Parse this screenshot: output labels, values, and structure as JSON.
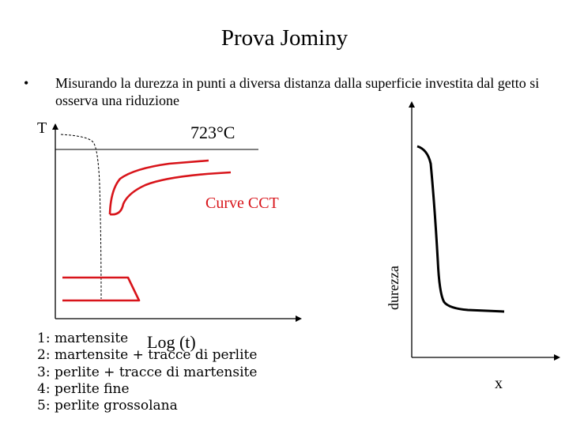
{
  "title": "Prova Jominy",
  "bullet": {
    "marker": "•",
    "text": "Misurando la durezza in punti a diversa distanza dalla superficie investita dal getto si osserva una riduzione"
  },
  "cct_diagram": {
    "y_axis_label": "T",
    "temperature_label": "723°C",
    "curves_label": "Curve CCT",
    "x_axis_label": "Log (t)"
  },
  "legend": [
    "1: martensite",
    "2: martensite + tracce di perlite",
    "3: perlite + tracce di martensite",
    "4: perlite fine",
    "5: perlite grossolana"
  ],
  "hardness_plot": {
    "y_axis_label": "durezza",
    "x_axis_label": "x"
  },
  "colors": {
    "cct_curves": "#d8141a",
    "axes": "#000000"
  }
}
